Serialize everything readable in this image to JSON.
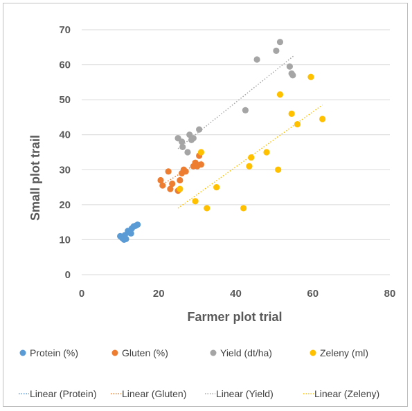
{
  "chart_data": {
    "type": "scatter",
    "xlabel": "Farmer plot trial",
    "ylabel": "Small plot trail",
    "xlim": [
      0,
      80
    ],
    "ylim": [
      0,
      70
    ],
    "xticks": [
      0,
      20,
      40,
      60,
      80
    ],
    "yticks": [
      0,
      10,
      20,
      30,
      40,
      50,
      60,
      70
    ],
    "grid": "horizontal",
    "legend_position": "bottom",
    "series": [
      {
        "name": "Protein (%)",
        "color": "#5B9BD5",
        "points": [
          [
            10,
            11
          ],
          [
            10.5,
            10.5
          ],
          [
            11,
            10
          ],
          [
            11.5,
            10.2
          ],
          [
            12,
            12.5
          ],
          [
            12.5,
            12
          ],
          [
            13,
            13.2
          ],
          [
            13.5,
            13.8
          ],
          [
            14,
            14
          ],
          [
            14.5,
            14.3
          ],
          [
            11.2,
            11.3
          ],
          [
            12.8,
            11.8
          ]
        ],
        "trend": {
          "name": "Linear (Protein)",
          "x": [
            10,
            14.5
          ],
          "y": [
            10.2,
            14.2
          ]
        }
      },
      {
        "name": "Gluten (%)",
        "color": "#ED7D31",
        "points": [
          [
            20.5,
            27
          ],
          [
            21,
            25.5
          ],
          [
            22.5,
            29.5
          ],
          [
            23,
            24.5
          ],
          [
            23.5,
            26
          ],
          [
            25,
            24
          ],
          [
            25.5,
            27
          ],
          [
            26,
            29
          ],
          [
            26.5,
            30
          ],
          [
            27,
            29.5
          ],
          [
            29,
            31
          ],
          [
            29.5,
            32
          ],
          [
            30,
            31
          ],
          [
            30.5,
            34
          ],
          [
            31,
            31.5
          ]
        ],
        "trend": {
          "name": "Linear (Gluten)",
          "x": [
            20.5,
            31
          ],
          "y": [
            25.5,
            32.5
          ]
        }
      },
      {
        "name": "Yield (dt/ha)",
        "color": "#A5A5A5",
        "points": [
          [
            25,
            39
          ],
          [
            26,
            38
          ],
          [
            26.2,
            36.5
          ],
          [
            27.5,
            35
          ],
          [
            28,
            40
          ],
          [
            28.5,
            38.5
          ],
          [
            29,
            39
          ],
          [
            30.5,
            41.5
          ],
          [
            42.5,
            47
          ],
          [
            45.5,
            61.5
          ],
          [
            50.5,
            64
          ],
          [
            51.5,
            66.5
          ],
          [
            54,
            59.5
          ],
          [
            54.5,
            57.5
          ],
          [
            54.8,
            57
          ]
        ],
        "trend": {
          "name": "Linear (Yield)",
          "x": [
            25,
            55
          ],
          "y": [
            36,
            62.5
          ]
        }
      },
      {
        "name": "Zeleny (ml)",
        "color": "#FFC000",
        "points": [
          [
            25.5,
            24.5
          ],
          [
            29.5,
            21
          ],
          [
            31,
            35
          ],
          [
            32.5,
            19
          ],
          [
            35,
            25
          ],
          [
            42,
            19
          ],
          [
            43.5,
            31
          ],
          [
            44,
            33.5
          ],
          [
            48,
            35
          ],
          [
            51,
            30
          ],
          [
            51.5,
            51.5
          ],
          [
            54.5,
            46
          ],
          [
            56,
            43
          ],
          [
            59.5,
            56.5
          ],
          [
            62.5,
            44.5
          ]
        ],
        "trend": {
          "name": "Linear (Zeleny)",
          "x": [
            25,
            62.5
          ],
          "y": [
            19,
            48.5
          ]
        }
      }
    ]
  }
}
